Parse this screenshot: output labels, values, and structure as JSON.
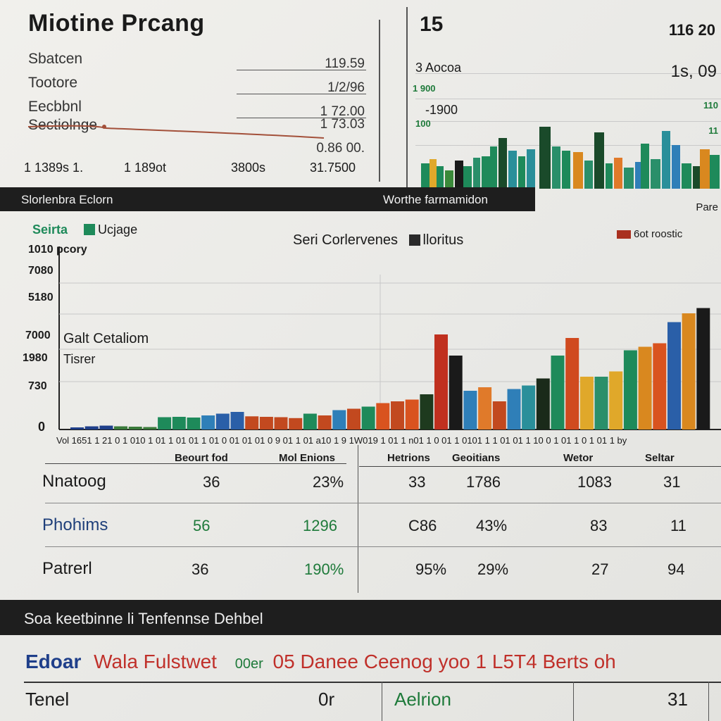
{
  "title": "Miotine Prcang",
  "stats": [
    {
      "label": "Sbatcen",
      "value": "119.59"
    },
    {
      "label": "Tootore",
      "value": "1/2/96"
    },
    {
      "label": "Eecbbnl",
      "value": "1 72.00"
    },
    {
      "label": "Sectiolnge",
      "value": "1 73.03"
    },
    {
      "label": "",
      "value": "0.86 00."
    }
  ],
  "stats_footer": [
    "1 1389s 1.",
    "1 189ot",
    "3800s",
    "31.7500"
  ],
  "top_right": {
    "head_left": "15",
    "head_right": "116 20",
    "labels": [
      "3 Aocoa",
      "1 900",
      "-1900",
      "100"
    ],
    "right_values": [
      "1s, 09",
      "110",
      "11"
    ]
  },
  "band1": {
    "left": "Slorlenbra Eclorn",
    "right": "Worthe farmamidon",
    "far_right": "Pare"
  },
  "legend_left": [
    {
      "label": "Seirta",
      "color": "#1e8a5a"
    },
    {
      "label": "Ucjage",
      "color": "#1e8a5a"
    }
  ],
  "legend_mid": [
    {
      "label": "Seri Corlervenes",
      "color": "#1f3f8a"
    },
    {
      "label": "lloritus",
      "color": "#2a2a2a"
    }
  ],
  "legend_right": {
    "label": "6ot roostic",
    "color": "#a9301f"
  },
  "annotations": [
    "Galt Cetaliom",
    "Tisrer"
  ],
  "y_ticks": [
    "1010 pcory",
    "7080",
    "5180",
    "7000",
    "1980",
    "730",
    "0"
  ],
  "x_ticks": "Vol 1651  1 21 0   1 010 1 01 1 01 01 1 01 0 01 01 01 0 9 01 1 01 a10 1 9 1W019 1 01 1 n01 1 0 01 1 0101 1 1 01 01 1 10 0 1 01 1 0 1 01 1 by",
  "chart_data": {
    "type": "bar",
    "title": "",
    "xlabel": "",
    "ylabel": "",
    "ylim": [
      0,
      1000
    ],
    "grid": true,
    "legend": "top",
    "bars": [
      {
        "value": 12,
        "color": "#1f3f8a"
      },
      {
        "value": 18,
        "color": "#1f3f8a"
      },
      {
        "value": 22,
        "color": "#1f3f8a"
      },
      {
        "value": 18,
        "color": "#3a7a3a"
      },
      {
        "value": 16,
        "color": "#3a7a3a"
      },
      {
        "value": 14,
        "color": "#3a7a3a"
      },
      {
        "value": 70,
        "color": "#1e8a5a"
      },
      {
        "value": 72,
        "color": "#1e8a5a"
      },
      {
        "value": 68,
        "color": "#1e8a5a"
      },
      {
        "value": 80,
        "color": "#2f7fb8"
      },
      {
        "value": 90,
        "color": "#2a5fa8"
      },
      {
        "value": 100,
        "color": "#2a5fa8"
      },
      {
        "value": 75,
        "color": "#c2491f"
      },
      {
        "value": 72,
        "color": "#c2491f"
      },
      {
        "value": 70,
        "color": "#c2491f"
      },
      {
        "value": 65,
        "color": "#c2491f"
      },
      {
        "value": 90,
        "color": "#1e8a5a"
      },
      {
        "value": 80,
        "color": "#c2491f"
      },
      {
        "value": 110,
        "color": "#2f7fb8"
      },
      {
        "value": 118,
        "color": "#c2491f"
      },
      {
        "value": 130,
        "color": "#1e8a5a"
      },
      {
        "value": 150,
        "color": "#d9531f"
      },
      {
        "value": 160,
        "color": "#c2491f"
      },
      {
        "value": 170,
        "color": "#d9531f"
      },
      {
        "value": 200,
        "color": "#1e3a1e"
      },
      {
        "value": 540,
        "color": "#c0301f"
      },
      {
        "value": 420,
        "color": "#1a1a1a"
      },
      {
        "value": 220,
        "color": "#2f7fb8"
      },
      {
        "value": 240,
        "color": "#e07a2a"
      },
      {
        "value": 160,
        "color": "#c2491f"
      },
      {
        "value": 230,
        "color": "#2f7fb8"
      },
      {
        "value": 250,
        "color": "#2a8f9a"
      },
      {
        "value": 290,
        "color": "#1a2a1a"
      },
      {
        "value": 420,
        "color": "#1e8a5a"
      },
      {
        "value": 520,
        "color": "#d04a1f"
      },
      {
        "value": 300,
        "color": "#e0a82a"
      },
      {
        "value": 300,
        "color": "#2a8f6a"
      },
      {
        "value": 330,
        "color": "#e0a82a"
      },
      {
        "value": 450,
        "color": "#1e8a5a"
      },
      {
        "value": 470,
        "color": "#d9881f"
      },
      {
        "value": 490,
        "color": "#d9531f"
      },
      {
        "value": 610,
        "color": "#2a5fa8"
      },
      {
        "value": 660,
        "color": "#d9881f"
      },
      {
        "value": 690,
        "color": "#1a1a1a"
      }
    ]
  },
  "table": {
    "headers": [
      "Beourt fod",
      "Mol Enions",
      "Hetrions",
      "Geoitians",
      "Wetor",
      "Seltar"
    ],
    "rows": [
      {
        "label": "Nnatoog",
        "label_color": "#1a1a1a",
        "cells": [
          "36",
          "23%",
          "33",
          "1786",
          "1083",
          "31"
        ]
      },
      {
        "label": "Phohims",
        "label_color": "#1f3f7a",
        "cells": [
          "56",
          "1296",
          "C86",
          "43%",
          "83",
          "11"
        ]
      },
      {
        "label": "Patrerl",
        "label_color": "#1a1a1a",
        "cells": [
          "36",
          "190%",
          "95%",
          "29%",
          "27",
          "94"
        ]
      }
    ]
  },
  "footer_band": {
    "title": "Soa keetbinne li Tenfennse Dehbel"
  },
  "footer_line": [
    {
      "text": "Edoar",
      "color": "#1f3f8a"
    },
    {
      "text": "Wala Fulstwet",
      "color": "#c0302a"
    },
    {
      "text": "00er",
      "color": "#1e7a3a"
    },
    {
      "text": "05 Danee Ceenog yoo 1 L5T4 Berts oh",
      "color": "#c0302a"
    }
  ],
  "footer_table": [
    "Tenel",
    "0r",
    "Aelrion",
    "31"
  ]
}
